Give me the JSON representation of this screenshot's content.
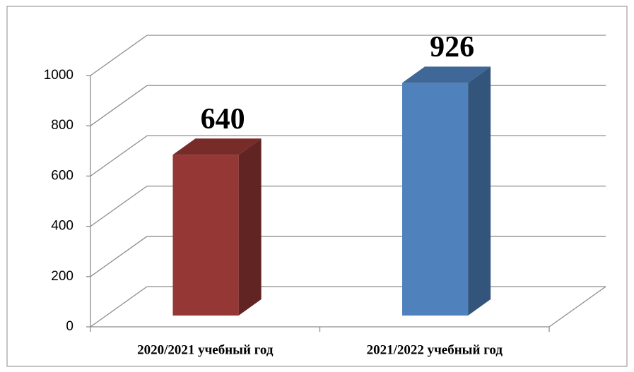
{
  "chart_data": {
    "type": "bar3d",
    "categories": [
      "2020/2021 учебный год",
      "2021/2022 учебный год"
    ],
    "values": [
      640,
      926
    ],
    "colors": [
      "#953735",
      "#4f81bd"
    ],
    "ylim": [
      0,
      1000
    ],
    "yticks": [
      0,
      200,
      400,
      600,
      800,
      1000
    ],
    "grid": true
  }
}
